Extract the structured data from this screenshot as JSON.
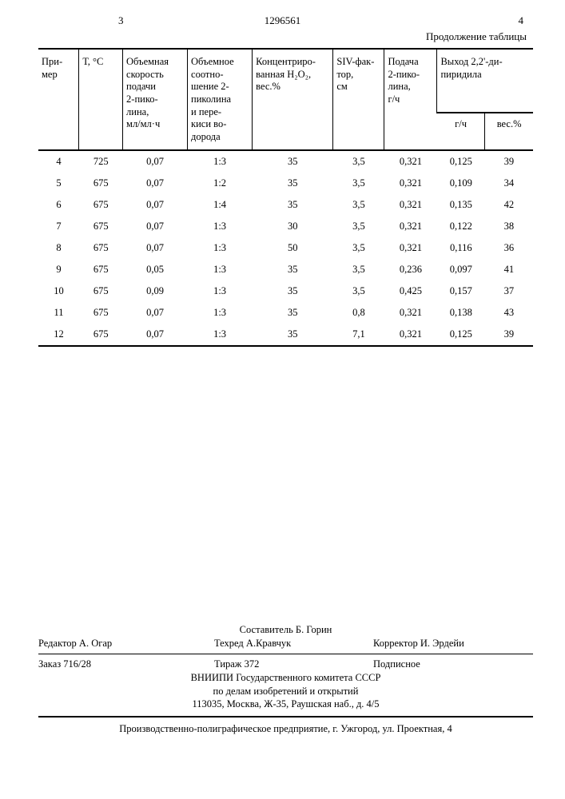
{
  "header": {
    "left_pagenum": "3",
    "doc_number": "1296561",
    "right_pagenum": "4",
    "continuation": "Продолжение таблицы"
  },
  "table": {
    "columns": {
      "c1": "При-\nмер",
      "c2": "Т, °С",
      "c3": "Объемная\nскорость\nподачи\n2-пико-\nлина,\nмл/мл·ч",
      "c4": "Объемное\nсоотно-\nшение 2-\nпиколина\nи пере-\nкиси во-\nдорода",
      "c5": "Концентриро-\nванная H₂O₂,\nвес.%",
      "c6": "SIV-фак-\nтор,\nсм",
      "c7": "Подача\n2-пико-\nлина,\nг/ч",
      "c8": "Выход 2,2'-ди-\nпиридила",
      "c8a": "г/ч",
      "c8b": "вес.%"
    },
    "rows": [
      {
        "n": "4",
        "t": "725",
        "v": "0,07",
        "r": "1:3",
        "h": "35",
        "s": "3,5",
        "p": "0,321",
        "g": "0,125",
        "w": "39"
      },
      {
        "n": "5",
        "t": "675",
        "v": "0,07",
        "r": "1:2",
        "h": "35",
        "s": "3,5",
        "p": "0,321",
        "g": "0,109",
        "w": "34"
      },
      {
        "n": "6",
        "t": "675",
        "v": "0,07",
        "r": "1:4",
        "h": "35",
        "s": "3,5",
        "p": "0,321",
        "g": "0,135",
        "w": "42"
      },
      {
        "n": "7",
        "t": "675",
        "v": "0,07",
        "r": "1:3",
        "h": "30",
        "s": "3,5",
        "p": "0,321",
        "g": "0,122",
        "w": "38"
      },
      {
        "n": "8",
        "t": "675",
        "v": "0,07",
        "r": "1:3",
        "h": "50",
        "s": "3,5",
        "p": "0,321",
        "g": "0,116",
        "w": "36"
      },
      {
        "n": "9",
        "t": "675",
        "v": "0,05",
        "r": "1:3",
        "h": "35",
        "s": "3,5",
        "p": "0,236",
        "g": "0,097",
        "w": "41"
      },
      {
        "n": "10",
        "t": "675",
        "v": "0,09",
        "r": "1:3",
        "h": "35",
        "s": "3,5",
        "p": "0,425",
        "g": "0,157",
        "w": "37"
      },
      {
        "n": "11",
        "t": "675",
        "v": "0,07",
        "r": "1:3",
        "h": "35",
        "s": "0,8",
        "p": "0,321",
        "g": "0,138",
        "w": "43"
      },
      {
        "n": "12",
        "t": "675",
        "v": "0,07",
        "r": "1:3",
        "h": "35",
        "s": "7,1",
        "p": "0,321",
        "g": "0,125",
        "w": "39"
      }
    ]
  },
  "footer": {
    "compiler": "Составитель Б. Горин",
    "editor_label": "Редактор",
    "editor": "А. Огар",
    "techred_label": "Техред",
    "techred": "А.Кравчук",
    "corrector_label": "Корректор",
    "corrector": "И. Эрдейи",
    "order": "Заказ 716/28",
    "tirage": "Тираж 372",
    "subscription": "Подписное",
    "org1": "ВНИИПИ Государственного комитета СССР",
    "org2": "по делам изобретений и открытий",
    "address1": "113035, Москва, Ж-35, Раушская наб., д. 4/5",
    "printer": "Производственно-полиграфическое предприятие, г. Ужгород, ул. Проектная, 4"
  }
}
